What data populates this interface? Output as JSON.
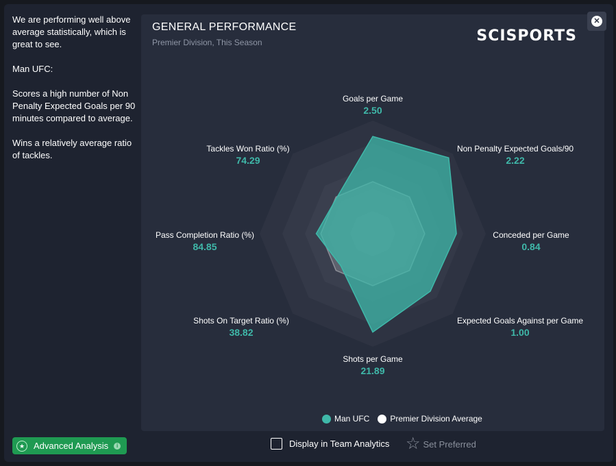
{
  "side_text": {
    "p1": "We are performing well above average statistically, which is great to see.",
    "p2": "Man UFC:",
    "p3": "Scores a high number of Non Penalty Expected Goals per 90 minutes compared to average.",
    "p4": "Wins a relatively average ratio of tackles."
  },
  "panel": {
    "title": "GENERAL PERFORMANCE",
    "subtitle": "Premier Division, This Season",
    "brand": "SCISPORTS"
  },
  "close_icon": "close-icon",
  "chart_data": {
    "type": "radar",
    "axes": [
      {
        "name": "Goals per Game",
        "value": "2.50",
        "team_level": 0.86,
        "avg_level": 0.46
      },
      {
        "name": "Non Penalty Expected Goals/90",
        "value": "2.22",
        "team_level": 0.95,
        "avg_level": 0.46
      },
      {
        "name": "Conceded per Game",
        "value": "0.84",
        "team_level": 0.74,
        "avg_level": 0.46
      },
      {
        "name": "Expected Goals Against per Game",
        "value": "1.00",
        "team_level": 0.72,
        "avg_level": 0.46
      },
      {
        "name": "Shots per Game",
        "value": "21.89",
        "team_level": 0.87,
        "avg_level": 0.46
      },
      {
        "name": "Shots On Target Ratio (%)",
        "value": "38.82",
        "team_level": 0.4,
        "avg_level": 0.46
      },
      {
        "name": "Pass Completion Ratio (%)",
        "value": "84.85",
        "team_level": 0.5,
        "avg_level": 0.46
      },
      {
        "name": "Tackles Won Ratio (%)",
        "value": "74.29",
        "team_level": 0.45,
        "avg_level": 0.46
      }
    ],
    "series": [
      {
        "name": "Man UFC",
        "color": "#3fb8a9"
      },
      {
        "name": "Premier Division Average",
        "color": "#ffffff"
      }
    ]
  },
  "legend": {
    "team_label": "Man UFC",
    "avg_label": "Premier Division Average"
  },
  "bottom": {
    "advanced_label": "Advanced Analysis",
    "display_label": "Display in Team Analytics",
    "preferred_label": "Set Preferred"
  }
}
